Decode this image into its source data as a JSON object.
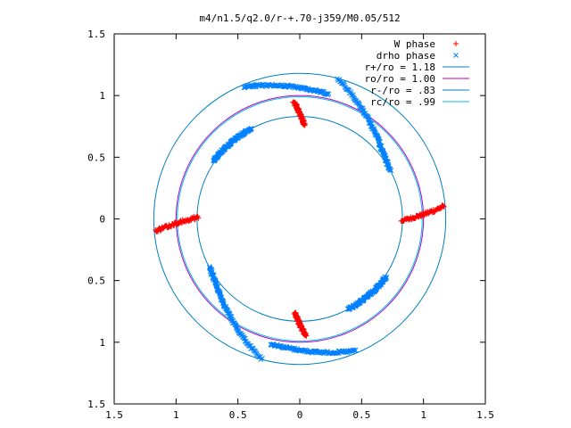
{
  "chart_data": {
    "type": "scatter",
    "title": "m4/n1.5/q2.0/r-+.70-j359/M0.05/512",
    "xlabel": "",
    "ylabel": "",
    "xlim": [
      -1.5,
      1.5
    ],
    "ylim": [
      -1.5,
      1.5
    ],
    "xtick_values": [
      -1.5,
      -1,
      -0.5,
      0,
      0.5,
      1,
      1.5
    ],
    "xtick_labels": [
      "1.5",
      "1",
      "0.5",
      "0",
      "0.5",
      "1",
      "1.5"
    ],
    "ytick_values": [
      1.5,
      1,
      0.5,
      0,
      -0.5,
      -1,
      -1.5
    ],
    "ytick_labels": [
      "1.5",
      "1",
      "0.5",
      "0",
      "0.5",
      "1",
      "1.5"
    ],
    "grid": false,
    "legend_position": "top-right",
    "series": [
      {
        "name": "W phase",
        "kind": "points",
        "marker": "+",
        "color": "#ff0000",
        "strips": [
          {
            "a": 0.76,
            "b": 0.95,
            "angle_deg": 90
          },
          {
            "a": 0.76,
            "b": 0.95,
            "angle_deg": -90
          },
          {
            "a": 0.82,
            "b": 1.17,
            "angle_deg": 2
          },
          {
            "a": 0.82,
            "b": 1.17,
            "angle_deg": 182
          }
        ]
      },
      {
        "name": "drho phase",
        "kind": "points",
        "marker": "x",
        "color": "#0080ff",
        "arcs": [
          {
            "r1": 0.83,
            "r2": 1.18,
            "from_deg": 28,
            "to_deg": 75
          },
          {
            "r1": 0.83,
            "r2": 1.18,
            "from_deg": 208,
            "to_deg": 255
          },
          {
            "r1": 1.04,
            "r2": 1.16,
            "from_deg": 77,
            "to_deg": 113
          },
          {
            "r1": 1.04,
            "r2": 1.16,
            "from_deg": 257,
            "to_deg": 293
          },
          {
            "r1": 0.83,
            "r2": 0.84,
            "from_deg": 118,
            "to_deg": 146
          },
          {
            "r1": 0.83,
            "r2": 0.84,
            "from_deg": 298,
            "to_deg": 326
          }
        ]
      },
      {
        "name": "r+/ro = 1.18",
        "kind": "circle",
        "radius": 1.18,
        "color": "#0080c0"
      },
      {
        "name": "ro/ro = 1.00",
        "kind": "circle",
        "radius": 1.0,
        "color": "#c000c0"
      },
      {
        "name": "r-/ro = .83",
        "kind": "circle",
        "radius": 0.83,
        "color": "#0080c0"
      },
      {
        "name": "rc/ro = .99",
        "kind": "circle",
        "radius": 0.99,
        "color": "#00c0e0"
      }
    ]
  }
}
